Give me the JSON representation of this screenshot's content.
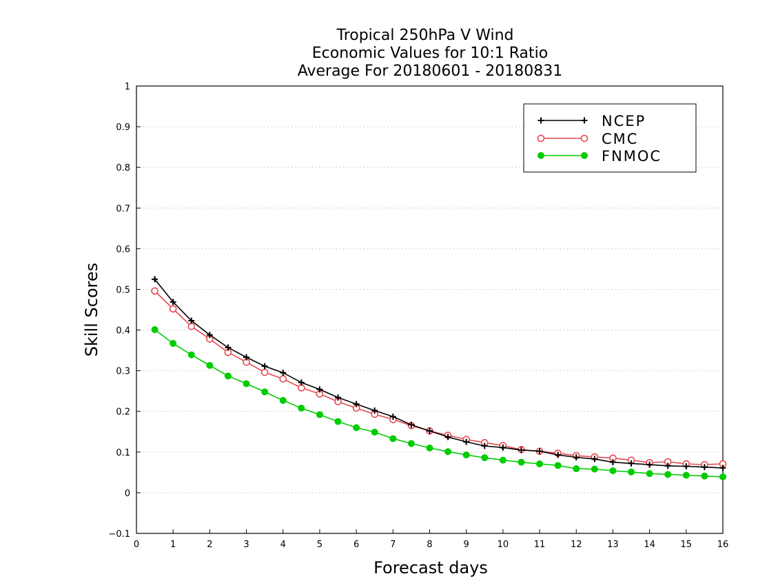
{
  "chart_data": {
    "type": "line",
    "title": [
      "Tropical 250hPa V Wind",
      "Economic Values for 10:1 Ratio",
      "Average For 20180601 - 20180831"
    ],
    "xlabel": "Forecast days",
    "ylabel": "Skill Scores",
    "xlim": [
      0,
      16
    ],
    "ylim": [
      -0.1,
      1
    ],
    "xticks": [
      "0",
      "1",
      "2",
      "3",
      "4",
      "5",
      "6",
      "7",
      "8",
      "9",
      "10",
      "11",
      "12",
      "13",
      "14",
      "15",
      "16"
    ],
    "yticks": [
      "−0.1",
      "0",
      "0.1",
      "0.2",
      "0.3",
      "0.4",
      "0.5",
      "0.6",
      "0.7",
      "0.8",
      "0.9",
      "1"
    ],
    "grid": "horizontal dotted",
    "legend_position": "top-right",
    "x": [
      0.5,
      1,
      1.5,
      2,
      2.5,
      3,
      3.5,
      4,
      4.5,
      5,
      5.5,
      6,
      6.5,
      7,
      7.5,
      8,
      8.5,
      9,
      9.5,
      10,
      10.5,
      11,
      11.5,
      12,
      12.5,
      13,
      13.5,
      14,
      14.5,
      15,
      15.5,
      16
    ],
    "series": [
      {
        "name": "NCEP",
        "color": "#000000",
        "marker": "plus",
        "values": [
          0.525,
          0.469,
          0.423,
          0.388,
          0.357,
          0.333,
          0.311,
          0.295,
          0.271,
          0.254,
          0.234,
          0.218,
          0.202,
          0.187,
          0.167,
          0.152,
          0.137,
          0.125,
          0.115,
          0.111,
          0.105,
          0.102,
          0.093,
          0.087,
          0.083,
          0.075,
          0.072,
          0.069,
          0.066,
          0.065,
          0.063,
          0.061
        ]
      },
      {
        "name": "CMC",
        "color": "#e8474f",
        "marker": "open-circle",
        "values": [
          0.496,
          0.452,
          0.409,
          0.378,
          0.345,
          0.321,
          0.296,
          0.28,
          0.258,
          0.243,
          0.224,
          0.208,
          0.193,
          0.18,
          0.165,
          0.152,
          0.141,
          0.131,
          0.123,
          0.116,
          0.106,
          0.102,
          0.097,
          0.091,
          0.088,
          0.085,
          0.08,
          0.074,
          0.076,
          0.071,
          0.069,
          0.071
        ]
      },
      {
        "name": "FNMOC",
        "color": "#00cc00",
        "marker": "filled-circle",
        "values": [
          0.401,
          0.367,
          0.339,
          0.313,
          0.287,
          0.268,
          0.248,
          0.227,
          0.208,
          0.192,
          0.175,
          0.16,
          0.149,
          0.133,
          0.121,
          0.11,
          0.101,
          0.093,
          0.086,
          0.08,
          0.075,
          0.071,
          0.067,
          0.059,
          0.058,
          0.054,
          0.051,
          0.047,
          0.045,
          0.043,
          0.041,
          0.039
        ]
      }
    ]
  }
}
